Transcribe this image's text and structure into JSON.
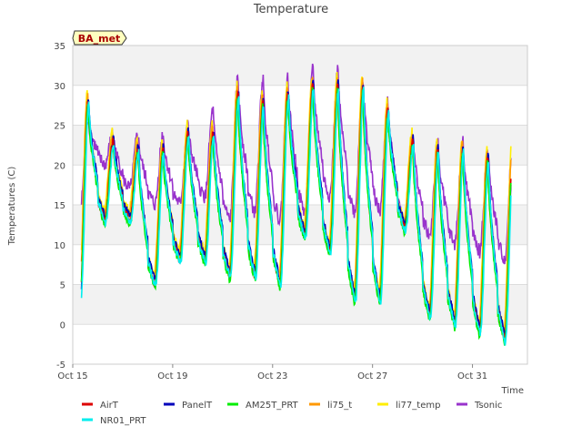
{
  "chart_data": {
    "type": "line",
    "title": "Temperature",
    "badge": "BA_met",
    "xlabel": "Time",
    "ylabel": "Temperatures (C)",
    "ylim": [
      -5,
      35
    ],
    "xlim": [
      "Oct 15",
      "Nov 2"
    ],
    "yticks": [
      -5,
      0,
      5,
      10,
      15,
      20,
      25,
      30,
      35
    ],
    "xticks": [
      "Oct 15",
      "Oct 19",
      "Oct 23",
      "Oct 27",
      "Oct 31"
    ],
    "grid": true,
    "legend_position": "bottom",
    "day_min": [
      3,
      13,
      13,
      5,
      8,
      8,
      6,
      6,
      5,
      11,
      9,
      3,
      3,
      12,
      1,
      0,
      -1,
      -2,
      -3
    ],
    "day_max": [
      28,
      23,
      22,
      22,
      24,
      24,
      29,
      28,
      29,
      30,
      30,
      30,
      27,
      23,
      22,
      22,
      21,
      22,
      0
    ],
    "tsonic_min": [
      14,
      20,
      17,
      15,
      15,
      16,
      13,
      14,
      13,
      14,
      16,
      14,
      14,
      13,
      11,
      10,
      9,
      8,
      13
    ],
    "tsonic_max": [
      26,
      24,
      24,
      24,
      25,
      27,
      31,
      31,
      31,
      32,
      32,
      31,
      28,
      24,
      23,
      23,
      22,
      23,
      14
    ],
    "series": [
      {
        "name": "AirT",
        "color": "#dd0000",
        "offset": 0.0,
        "phase": 0.0
      },
      {
        "name": "PanelT",
        "color": "#0000bb",
        "offset": 0.5,
        "phase": 0.02
      },
      {
        "name": "AM25T_PRT",
        "color": "#00ee00",
        "offset": -0.5,
        "phase": 0.0
      },
      {
        "name": "li75_t",
        "color": "#ff9900",
        "offset": 0.6,
        "phase": -0.02
      },
      {
        "name": "li77_temp",
        "color": "#ffee00",
        "offset": 1.3,
        "phase": -0.03
      },
      {
        "name": "Tsonic",
        "color": "#9933cc",
        "offset": 0.0,
        "phase": 0.0
      },
      {
        "name": "NR01_PRT",
        "color": "#00eeee",
        "offset": -0.3,
        "phase": 0.03
      }
    ]
  }
}
